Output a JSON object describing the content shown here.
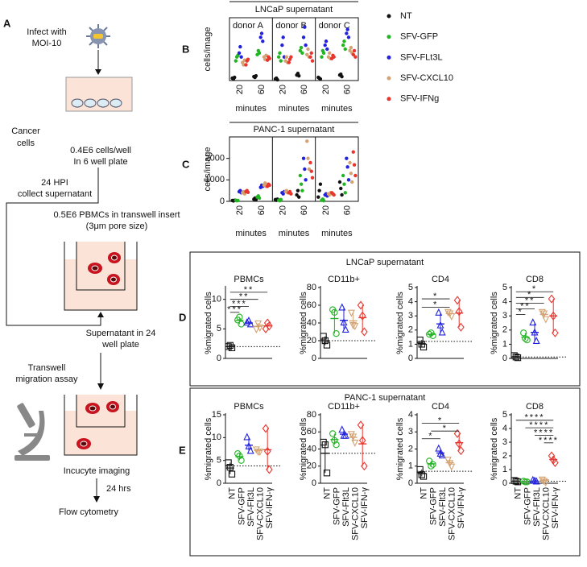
{
  "diagram": {
    "label": "A",
    "infect": [
      "Infect with",
      "MOI-10"
    ],
    "cancer": [
      "Cancer",
      "cells"
    ],
    "seeding": [
      "0.4E6 cells/well",
      "In 6 well plate"
    ],
    "collect": [
      "24 HPI",
      "collect supernatant"
    ],
    "pbmc": [
      "0.5E6 PBMCs in transwell insert",
      "(3μm pore size)"
    ],
    "supernatant": [
      "Supernatant in 24",
      "well plate"
    ],
    "assay": [
      "Transwell",
      "migration assay"
    ],
    "imaging": "Incucyte imaging",
    "time": "24 hrs",
    "flow": "Flow cytometry"
  },
  "chart_data": [
    {
      "type": "strip",
      "panel": "B",
      "title": "LNCaP supernatant",
      "y_label": "cells/image",
      "x_label": "minutes",
      "categories": [
        "20",
        "60"
      ],
      "subtitles": [
        "donor A",
        "donor B",
        "donor C"
      ],
      "ylim": [
        0,
        800
      ],
      "legend": "right",
      "series": [
        {
          "name": "NT",
          "color": "#111111",
          "values": [
            [
              [
                30,
                20,
                40
              ],
              [
                50,
                40,
                60
              ]
            ],
            [
              [
                20,
                30,
                10
              ],
              [
                70,
                90,
                60
              ]
            ],
            [
              [
                40,
                30,
                20
              ],
              [
                70,
                80,
                50
              ]
            ]
          ]
        },
        {
          "name": "SFV-GFP",
          "color": "#22b422",
          "values": [
            [
              [
                250,
                300,
                320
              ],
              [
                330,
                380,
                350
              ]
            ],
            [
              [
                300,
                350,
                250
              ],
              [
                380,
                420,
                350
              ]
            ],
            [
              [
                300,
                380,
                350
              ],
              [
                450,
                500,
                400
              ]
            ]
          ]
        },
        {
          "name": "SFV-FLt3L",
          "color": "#2222dd",
          "values": [
            [
              [
                350,
                430,
                300
              ],
              [
                550,
                600,
                500
              ]
            ],
            [
              [
                450,
                550,
                300
              ],
              [
                550,
                680,
                450
              ]
            ],
            [
              [
                450,
                500,
                400
              ],
              [
                600,
                650,
                550
              ]
            ]
          ]
        },
        {
          "name": "SFV-CXCL10",
          "color": "#d4a373",
          "values": [
            [
              [
                230,
                200,
                260
              ],
              [
                300,
                270,
                320
              ]
            ],
            [
              [
                250,
                300,
                230
              ],
              [
                330,
                400,
                300
              ]
            ],
            [
              [
                300,
                350,
                280
              ],
              [
                380,
                420,
                350
              ]
            ]
          ]
        },
        {
          "name": "SFV-IFNg",
          "color": "#e8352e",
          "values": [
            [
              [
                200,
                250,
                270
              ],
              [
                260,
                300,
                280
              ]
            ],
            [
              [
                230,
                270,
                300
              ],
              [
                300,
                350,
                250
              ]
            ],
            [
              [
                280,
                320,
                300
              ],
              [
                330,
                380,
                300
              ]
            ]
          ]
        }
      ]
    },
    {
      "type": "strip",
      "panel": "C",
      "title": "PANC-1 supernatant",
      "y_label": "cells/image",
      "x_label": "minutes",
      "categories": [
        "20",
        "60"
      ],
      "ylim": [
        0,
        3000
      ],
      "yticks": [
        0,
        1000,
        2000
      ],
      "series": [
        {
          "color": "#111111",
          "values": [
            [
              [
                40,
                20,
                50
              ],
              [
                100,
                150,
                80
              ]
            ],
            [
              [
                80,
                50,
                100
              ],
              [
                300,
                500,
                200
              ]
            ],
            [
              [
                200,
                500,
                800
              ],
              [
                900,
                600,
                300
              ]
            ]
          ]
        },
        {
          "color": "#22b422",
          "values": [
            [
              [
                50,
                30,
                40
              ],
              [
                200,
                250,
                150
              ]
            ],
            [
              [
                50,
                30,
                80
              ],
              [
                1200,
                800,
                500
              ]
            ],
            [
              [
                50,
                100,
                30
              ],
              [
                1200,
                800,
                400
              ]
            ]
          ]
        },
        {
          "color": "#2222dd",
          "values": [
            [
              [
                450,
                500,
                400
              ],
              [
                650,
                750,
                700
              ]
            ],
            [
              [
                400,
                350,
                450
              ],
              [
                2000,
                1500,
                1000
              ]
            ],
            [
              [
                300,
                350,
                250
              ],
              [
                2000,
                1600,
                1000
              ]
            ]
          ]
        },
        {
          "color": "#d4a373",
          "values": [
            [
              [
                400,
                450,
                350
              ],
              [
                750,
                850,
                700
              ]
            ],
            [
              [
                450,
                500,
                400
              ],
              [
                2800,
                2000,
                1500
              ]
            ],
            [
              [
                350,
                300,
                400
              ],
              [
                1800,
                1300,
                900
              ]
            ]
          ]
        },
        {
          "color": "#e8352e",
          "values": [
            [
              [
                450,
                500,
                420
              ],
              [
                700,
                800,
                750
              ]
            ],
            [
              [
                400,
                450,
                350
              ],
              [
                1800,
                1400,
                1100
              ]
            ],
            [
              [
                400,
                350,
                300
              ],
              [
                2300,
                1700,
                1200
              ]
            ]
          ]
        }
      ]
    },
    {
      "type": "dot",
      "panel": "D",
      "group_title": "LNCaP supernatant",
      "title": "PBMCs",
      "y_label": "%migrated cells",
      "ylim": [
        0,
        12
      ],
      "yticks": [
        0,
        5,
        10
      ],
      "reference": 2,
      "colors": [
        "#111111",
        "#22b422",
        "#2222dd",
        "#d4a373",
        "#e8352e"
      ],
      "markers": [
        "square",
        "circle",
        "triangle",
        "triangle-down",
        "diamond"
      ],
      "values": [
        [
          2,
          2.2,
          1.8
        ],
        [
          6.5,
          7,
          5.8
        ],
        [
          6,
          6.3,
          5.7
        ],
        [
          5,
          6,
          5.3
        ],
        [
          5,
          6,
          5.5
        ]
      ],
      "annotations": [
        {
          "from": 0,
          "to": 4,
          "y": 11.2,
          "label": "**"
        },
        {
          "from": 0,
          "to": 3,
          "y": 10,
          "label": "**"
        },
        {
          "from": 0,
          "to": 2,
          "y": 8.8,
          "label": "***"
        },
        {
          "from": 0,
          "to": 1,
          "y": 7.8,
          "label": "***"
        }
      ]
    },
    {
      "type": "dot",
      "title": "CD11b+",
      "y_label": "%migrated cells",
      "ylim": [
        0,
        80
      ],
      "yticks": [
        0,
        20,
        40,
        60,
        80
      ],
      "reference": 20,
      "colors": [
        "#111111",
        "#22b422",
        "#2222dd",
        "#d4a373",
        "#e8352e"
      ],
      "markers": [
        "square",
        "circle",
        "triangle",
        "triangle-down",
        "diamond"
      ],
      "values": [
        [
          25,
          20,
          15
        ],
        [
          55,
          52,
          28
        ],
        [
          57,
          40,
          32
        ],
        [
          52,
          38,
          37
        ],
        [
          60,
          48,
          30
        ]
      ]
    },
    {
      "type": "dot",
      "title": "CD4",
      "y_label": "%migrated cells",
      "ylim": [
        0,
        5
      ],
      "yticks": [
        0,
        1,
        2,
        3,
        4,
        5
      ],
      "reference": 1.2,
      "colors": [
        "#111111",
        "#22b422",
        "#2222dd",
        "#d4a373",
        "#e8352e"
      ],
      "markers": [
        "square",
        "circle",
        "triangle",
        "triangle-down",
        "diamond"
      ],
      "values": [
        [
          1.3,
          1,
          0.8
        ],
        [
          1.7,
          1.8,
          1.6
        ],
        [
          3.2,
          2.3,
          1.8
        ],
        [
          3.3,
          3.2,
          3
        ],
        [
          4.1,
          3.3,
          2.2
        ]
      ],
      "annotations": [
        {
          "from": 0,
          "to": 3,
          "y": 4.2,
          "label": "*"
        },
        {
          "from": 0,
          "to": 3,
          "y": 3.6,
          "label": "*"
        }
      ]
    },
    {
      "type": "dot",
      "title": "CD8",
      "y_label": "%migrated cells",
      "ylim": [
        0,
        5
      ],
      "yticks": [
        0,
        1,
        2,
        3,
        4,
        5
      ],
      "reference": 0.1,
      "colors": [
        "#111111",
        "#22b422",
        "#2222dd",
        "#d4a373",
        "#e8352e"
      ],
      "markers": [
        "square",
        "circle",
        "triangle",
        "triangle-down",
        "diamond"
      ],
      "values": [
        [
          0.2,
          0.1,
          0.05
        ],
        [
          1.8,
          1.4,
          1.3
        ],
        [
          2.5,
          1.8,
          1.2
        ],
        [
          3.3,
          3.2,
          2.8
        ],
        [
          4.2,
          3,
          1.8
        ]
      ],
      "annotations": [
        {
          "from": 0,
          "to": 4,
          "y": 4.7,
          "label": "*"
        },
        {
          "from": 0,
          "to": 3,
          "y": 4.3,
          "label": "*"
        },
        {
          "from": 0,
          "to": 3,
          "y": 3.9,
          "label": "**"
        },
        {
          "from": 0,
          "to": 2,
          "y": 3.5,
          "label": "**"
        },
        {
          "from": 0,
          "to": 1,
          "y": 3.1,
          "label": "*"
        }
      ]
    },
    {
      "type": "dot",
      "panel": "E",
      "group_title": "PANC-1 supernatant",
      "title": "PBMCs",
      "y_label": "%migrated cells",
      "ylim": [
        0,
        15
      ],
      "yticks": [
        0,
        5,
        10,
        15
      ],
      "reference": 3.8,
      "categories": [
        "NT",
        "SFV-GFP",
        "SFV-Flt3L",
        "SFV-CXCL10",
        "SFV-IFN-γ"
      ],
      "colors": [
        "#111111",
        "#22b422",
        "#2222dd",
        "#d4a373",
        "#e8352e"
      ],
      "markers": [
        "square",
        "circle",
        "triangle",
        "triangle-down",
        "diamond"
      ],
      "values": [
        [
          4.5,
          3.5,
          2
        ],
        [
          6.5,
          6,
          5
        ],
        [
          10,
          8,
          7
        ],
        [
          7.5,
          7,
          7
        ],
        [
          12,
          7,
          3
        ]
      ]
    },
    {
      "type": "dot",
      "title": "CD11b+",
      "y_label": "%migrated cells",
      "ylim": [
        0,
        80
      ],
      "yticks": [
        0,
        20,
        40,
        60,
        80
      ],
      "reference": 35,
      "categories": [
        "NT",
        "SFV-GFP",
        "SFV-Flt3L",
        "SFV-CXCL10",
        "SFV-IFN-γ"
      ],
      "colors": [
        "#111111",
        "#22b422",
        "#2222dd",
        "#d4a373",
        "#e8352e"
      ],
      "markers": [
        "square",
        "circle",
        "triangle",
        "triangle-down",
        "diamond"
      ],
      "values": [
        [
          48,
          45,
          12
        ],
        [
          58,
          50,
          45
        ],
        [
          62,
          55,
          55
        ],
        [
          58,
          55,
          48
        ],
        [
          68,
          50,
          20
        ]
      ]
    },
    {
      "type": "dot",
      "title": "CD4",
      "y_label": "%migrated cells",
      "ylim": [
        0,
        4
      ],
      "yticks": [
        0,
        1,
        2,
        3,
        4
      ],
      "reference": 0.7,
      "categories": [
        "NT",
        "SFV-GFP",
        "SFV-Flt3L",
        "SFV-CXCL10",
        "SFV-IFN-γ"
      ],
      "colors": [
        "#111111",
        "#22b422",
        "#2222dd",
        "#d4a373",
        "#e8352e"
      ],
      "markers": [
        "square",
        "circle",
        "triangle",
        "triangle-down",
        "diamond"
      ],
      "values": [
        [
          0.8,
          0.5,
          0.4
        ],
        [
          1.3,
          1,
          1.1
        ],
        [
          2,
          1.7,
          1.6
        ],
        [
          1.4,
          1.2,
          1
        ],
        [
          2.9,
          2.3,
          1.9
        ]
      ],
      "annotations": [
        {
          "from": 0,
          "to": 4,
          "y": 3.5,
          "label": "*"
        },
        {
          "from": 1,
          "to": 4,
          "y": 3.05,
          "label": "*"
        },
        {
          "from": 0,
          "to": 2,
          "y": 2.6,
          "label": "*"
        }
      ]
    },
    {
      "type": "dot",
      "title": "CD8",
      "y_label": "%migrated cells",
      "ylim": [
        0,
        5
      ],
      "yticks": [
        0,
        1,
        2,
        3,
        4,
        5
      ],
      "reference": 0.15,
      "categories": [
        "NT",
        "SFV-GFP",
        "SFV-Flt3L",
        "SFV-CXCL10",
        "SFV-IFN-γ"
      ],
      "colors": [
        "#111111",
        "#22b422",
        "#2222dd",
        "#d4a373",
        "#e8352e"
      ],
      "markers": [
        "square",
        "circle",
        "triangle",
        "triangle-down",
        "diamond"
      ],
      "values": [
        [
          0.2,
          0.15,
          0.1
        ],
        [
          0.15,
          0.1,
          0.1
        ],
        [
          0.2,
          0.15,
          0.1
        ],
        [
          0.3,
          0.2,
          0.1
        ],
        [
          2,
          1.7,
          1.5
        ]
      ],
      "annotations": [
        {
          "from": 0,
          "to": 4,
          "y": 4.6,
          "label": "****"
        },
        {
          "from": 1,
          "to": 4,
          "y": 4.05,
          "label": "****"
        },
        {
          "from": 2,
          "to": 4,
          "y": 3.5,
          "label": "****"
        },
        {
          "from": 3,
          "to": 4,
          "y": 2.95,
          "label": "****"
        }
      ]
    }
  ]
}
